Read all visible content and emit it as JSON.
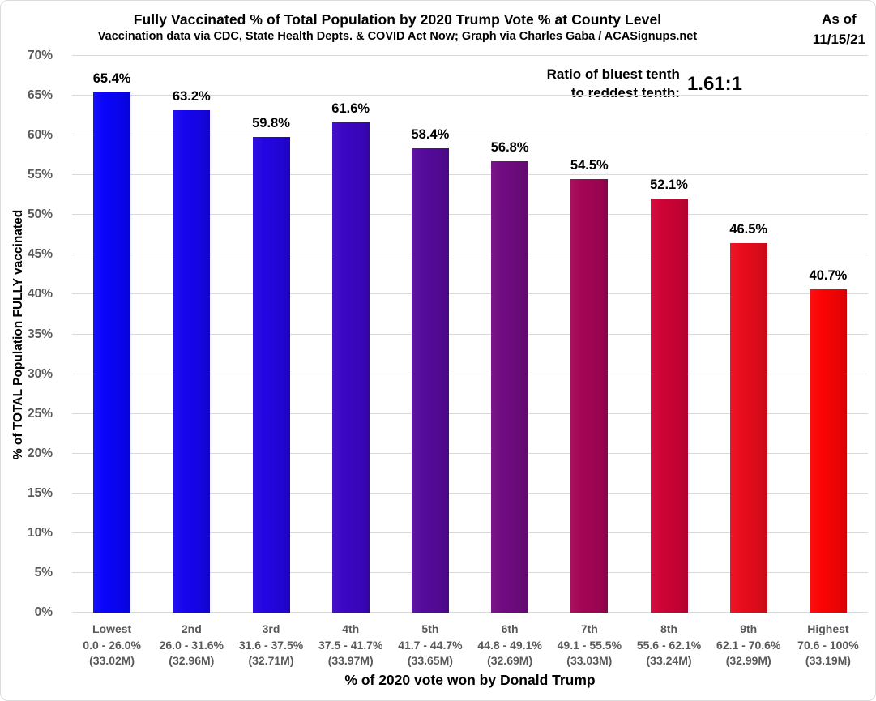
{
  "header": {
    "title": "Fully Vaccinated % of Total Population by 2020 Trump Vote % at County Level",
    "subtitle": "Vaccination data via CDC, State Health Depts. & COVID Act Now; Graph via Charles Gaba / ACASignups.net",
    "as_of_label": "As of",
    "as_of_date": "11/15/21"
  },
  "annotation": {
    "line1": "Ratio of bluest tenth",
    "line2": "to reddest tenth:",
    "ratio": "1.61:1"
  },
  "chart_data": {
    "type": "bar",
    "title": "Fully Vaccinated % of Total Population by 2020 Trump Vote % at County Level",
    "subtitle": "Vaccination data via CDC, State Health Depts. & COVID Act Now; Graph via Charles Gaba / ACASignups.net",
    "xlabel": "% of 2020 vote won by Donald Trump",
    "ylabel": "% of TOTAL Population FULLY vaccinated",
    "ylim": [
      0,
      70
    ],
    "ytick_step": 5,
    "ytick_suffix": "%",
    "grid": true,
    "legend": false,
    "categories": [
      "Lowest",
      "2nd",
      "3rd",
      "4th",
      "5th",
      "6th",
      "7th",
      "8th",
      "9th",
      "Highest"
    ],
    "values": [
      65.4,
      63.2,
      59.8,
      61.6,
      58.4,
      56.8,
      54.5,
      52.1,
      46.5,
      40.7
    ],
    "bins": [
      {
        "decile": "Lowest",
        "trump_vote_range": "0.0 - 26.0%",
        "population": "(33.02M)",
        "value": 65.4,
        "label": "65.4%",
        "color": "#0a04fa"
      },
      {
        "decile": "2nd",
        "trump_vote_range": "26.0 - 31.6%",
        "population": "(32.96M)",
        "value": 63.2,
        "label": "63.2%",
        "color": "#1605ef"
      },
      {
        "decile": "3rd",
        "trump_vote_range": "31.6 - 37.5%",
        "population": "(32.71M)",
        "value": 59.8,
        "label": "59.8%",
        "color": "#2405e2"
      },
      {
        "decile": "4th",
        "trump_vote_range": "37.5 - 41.7%",
        "population": "(33.97M)",
        "value": 61.6,
        "label": "61.6%",
        "color": "#3c06c4"
      },
      {
        "decile": "5th",
        "trump_vote_range": "41.7 - 44.7%",
        "population": "(33.65M)",
        "value": 58.4,
        "label": "58.4%",
        "color": "#560a9b"
      },
      {
        "decile": "6th",
        "trump_vote_range": "44.8 - 49.1%",
        "population": "(32.69M)",
        "value": 56.8,
        "label": "56.8%",
        "color": "#710b82"
      },
      {
        "decile": "7th",
        "trump_vote_range": "49.1 - 55.5%",
        "population": "(33.03M)",
        "value": 54.5,
        "label": "54.5%",
        "color": "#a40556"
      },
      {
        "decile": "8th",
        "trump_vote_range": "55.6 - 62.1%",
        "population": "(33.24M)",
        "value": 52.1,
        "label": "52.1%",
        "color": "#ce0336"
      },
      {
        "decile": "9th",
        "trump_vote_range": "62.1 - 70.6%",
        "population": "(32.99M)",
        "value": 46.5,
        "label": "46.5%",
        "color": "#e90c1c"
      },
      {
        "decile": "Highest",
        "trump_vote_range": "70.6 - 100%",
        "population": "(33.19M)",
        "value": 40.7,
        "label": "40.7%",
        "color": "#fb0404"
      }
    ],
    "colors": {
      "gridline": "#d9d9d9",
      "tick_label": "#595959",
      "category_label": "#595959",
      "value_label": "#000000",
      "title": "#000000"
    }
  }
}
